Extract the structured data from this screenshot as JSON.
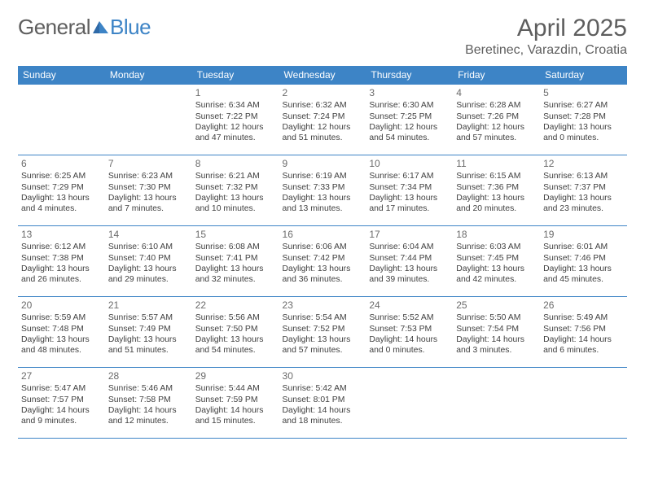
{
  "logo_general": "General",
  "logo_blue": "Blue",
  "title": "April 2025",
  "location": "Beretinec, Varazdin, Croatia",
  "colors": {
    "header_bg": "#3d84c6",
    "header_text": "#ffffff",
    "rule": "#3d84c6",
    "body_text": "#404040",
    "title_text": "#5e5e5e",
    "page_bg": "#ffffff"
  },
  "day_headers": [
    "Sunday",
    "Monday",
    "Tuesday",
    "Wednesday",
    "Thursday",
    "Friday",
    "Saturday"
  ],
  "weeks": [
    [
      null,
      null,
      {
        "n": "1",
        "sr": "Sunrise: 6:34 AM",
        "ss": "Sunset: 7:22 PM",
        "dl": "Daylight: 12 hours and 47 minutes."
      },
      {
        "n": "2",
        "sr": "Sunrise: 6:32 AM",
        "ss": "Sunset: 7:24 PM",
        "dl": "Daylight: 12 hours and 51 minutes."
      },
      {
        "n": "3",
        "sr": "Sunrise: 6:30 AM",
        "ss": "Sunset: 7:25 PM",
        "dl": "Daylight: 12 hours and 54 minutes."
      },
      {
        "n": "4",
        "sr": "Sunrise: 6:28 AM",
        "ss": "Sunset: 7:26 PM",
        "dl": "Daylight: 12 hours and 57 minutes."
      },
      {
        "n": "5",
        "sr": "Sunrise: 6:27 AM",
        "ss": "Sunset: 7:28 PM",
        "dl": "Daylight: 13 hours and 0 minutes."
      }
    ],
    [
      {
        "n": "6",
        "sr": "Sunrise: 6:25 AM",
        "ss": "Sunset: 7:29 PM",
        "dl": "Daylight: 13 hours and 4 minutes."
      },
      {
        "n": "7",
        "sr": "Sunrise: 6:23 AM",
        "ss": "Sunset: 7:30 PM",
        "dl": "Daylight: 13 hours and 7 minutes."
      },
      {
        "n": "8",
        "sr": "Sunrise: 6:21 AM",
        "ss": "Sunset: 7:32 PM",
        "dl": "Daylight: 13 hours and 10 minutes."
      },
      {
        "n": "9",
        "sr": "Sunrise: 6:19 AM",
        "ss": "Sunset: 7:33 PM",
        "dl": "Daylight: 13 hours and 13 minutes."
      },
      {
        "n": "10",
        "sr": "Sunrise: 6:17 AM",
        "ss": "Sunset: 7:34 PM",
        "dl": "Daylight: 13 hours and 17 minutes."
      },
      {
        "n": "11",
        "sr": "Sunrise: 6:15 AM",
        "ss": "Sunset: 7:36 PM",
        "dl": "Daylight: 13 hours and 20 minutes."
      },
      {
        "n": "12",
        "sr": "Sunrise: 6:13 AM",
        "ss": "Sunset: 7:37 PM",
        "dl": "Daylight: 13 hours and 23 minutes."
      }
    ],
    [
      {
        "n": "13",
        "sr": "Sunrise: 6:12 AM",
        "ss": "Sunset: 7:38 PM",
        "dl": "Daylight: 13 hours and 26 minutes."
      },
      {
        "n": "14",
        "sr": "Sunrise: 6:10 AM",
        "ss": "Sunset: 7:40 PM",
        "dl": "Daylight: 13 hours and 29 minutes."
      },
      {
        "n": "15",
        "sr": "Sunrise: 6:08 AM",
        "ss": "Sunset: 7:41 PM",
        "dl": "Daylight: 13 hours and 32 minutes."
      },
      {
        "n": "16",
        "sr": "Sunrise: 6:06 AM",
        "ss": "Sunset: 7:42 PM",
        "dl": "Daylight: 13 hours and 36 minutes."
      },
      {
        "n": "17",
        "sr": "Sunrise: 6:04 AM",
        "ss": "Sunset: 7:44 PM",
        "dl": "Daylight: 13 hours and 39 minutes."
      },
      {
        "n": "18",
        "sr": "Sunrise: 6:03 AM",
        "ss": "Sunset: 7:45 PM",
        "dl": "Daylight: 13 hours and 42 minutes."
      },
      {
        "n": "19",
        "sr": "Sunrise: 6:01 AM",
        "ss": "Sunset: 7:46 PM",
        "dl": "Daylight: 13 hours and 45 minutes."
      }
    ],
    [
      {
        "n": "20",
        "sr": "Sunrise: 5:59 AM",
        "ss": "Sunset: 7:48 PM",
        "dl": "Daylight: 13 hours and 48 minutes."
      },
      {
        "n": "21",
        "sr": "Sunrise: 5:57 AM",
        "ss": "Sunset: 7:49 PM",
        "dl": "Daylight: 13 hours and 51 minutes."
      },
      {
        "n": "22",
        "sr": "Sunrise: 5:56 AM",
        "ss": "Sunset: 7:50 PM",
        "dl": "Daylight: 13 hours and 54 minutes."
      },
      {
        "n": "23",
        "sr": "Sunrise: 5:54 AM",
        "ss": "Sunset: 7:52 PM",
        "dl": "Daylight: 13 hours and 57 minutes."
      },
      {
        "n": "24",
        "sr": "Sunrise: 5:52 AM",
        "ss": "Sunset: 7:53 PM",
        "dl": "Daylight: 14 hours and 0 minutes."
      },
      {
        "n": "25",
        "sr": "Sunrise: 5:50 AM",
        "ss": "Sunset: 7:54 PM",
        "dl": "Daylight: 14 hours and 3 minutes."
      },
      {
        "n": "26",
        "sr": "Sunrise: 5:49 AM",
        "ss": "Sunset: 7:56 PM",
        "dl": "Daylight: 14 hours and 6 minutes."
      }
    ],
    [
      {
        "n": "27",
        "sr": "Sunrise: 5:47 AM",
        "ss": "Sunset: 7:57 PM",
        "dl": "Daylight: 14 hours and 9 minutes."
      },
      {
        "n": "28",
        "sr": "Sunrise: 5:46 AM",
        "ss": "Sunset: 7:58 PM",
        "dl": "Daylight: 14 hours and 12 minutes."
      },
      {
        "n": "29",
        "sr": "Sunrise: 5:44 AM",
        "ss": "Sunset: 7:59 PM",
        "dl": "Daylight: 14 hours and 15 minutes."
      },
      {
        "n": "30",
        "sr": "Sunrise: 5:42 AM",
        "ss": "Sunset: 8:01 PM",
        "dl": "Daylight: 14 hours and 18 minutes."
      },
      null,
      null,
      null
    ]
  ]
}
